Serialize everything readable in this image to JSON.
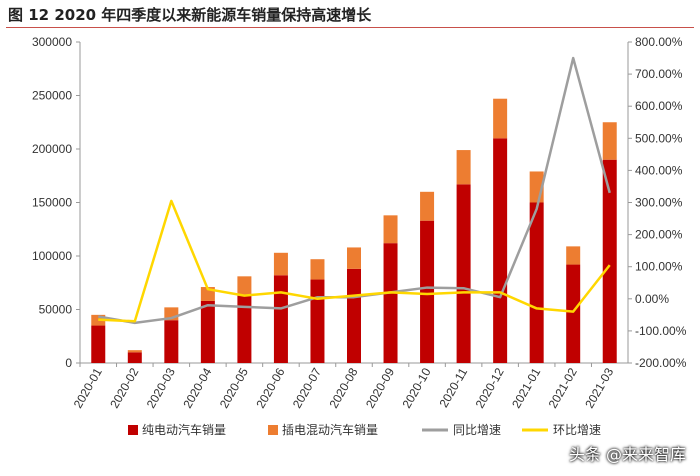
{
  "title": "图  12 2020 年四季度以来新能源车销量保持高速增长",
  "watermark": "头条 @来来智库",
  "chart_data": {
    "type": "bar",
    "categories": [
      "2020-01",
      "2020-02",
      "2020-03",
      "2020-04",
      "2020-05",
      "2020-06",
      "2020-07",
      "2020-08",
      "2020-09",
      "2020-10",
      "2020-11",
      "2020-12",
      "2021-01",
      "2021-02",
      "2021-03"
    ],
    "series": [
      {
        "name": "纯电动汽车销量",
        "kind": "bar",
        "axis": "left",
        "color": "#c00000",
        "values": [
          35000,
          10000,
          40000,
          58000,
          63000,
          82000,
          78000,
          88000,
          112000,
          133000,
          167000,
          210000,
          150000,
          92000,
          190000
        ]
      },
      {
        "name": "插电混动汽车销量",
        "kind": "bar",
        "axis": "left",
        "color": "#ed7d31",
        "values": [
          10000,
          2000,
          12000,
          13000,
          18000,
          21000,
          19000,
          20000,
          26000,
          27000,
          32000,
          37000,
          29000,
          17000,
          35000
        ]
      },
      {
        "name": "同比增速",
        "kind": "line",
        "axis": "right",
        "color": "#9e9e9e",
        "values": [
          -0.55,
          -0.75,
          -0.6,
          -0.2,
          -0.25,
          -0.3,
          0.05,
          0.05,
          0.2,
          0.35,
          0.33,
          0.05,
          2.8,
          7.5,
          3.3
        ]
      },
      {
        "name": "环比增速",
        "kind": "line",
        "axis": "right",
        "color": "#ffd700",
        "values": [
          -0.65,
          -0.7,
          3.05,
          0.3,
          0.1,
          0.2,
          0.0,
          0.1,
          0.2,
          0.15,
          0.2,
          0.2,
          -0.3,
          -0.4,
          1.05
        ]
      }
    ],
    "y_left": {
      "min": 0,
      "max": 300000,
      "ticks": [
        "0",
        "50000",
        "100000",
        "150000",
        "200000",
        "250000",
        "300000"
      ]
    },
    "y_right": {
      "min": -2,
      "max": 8,
      "ticks": [
        "-200.00%",
        "-100.00%",
        "0.00%",
        "100.00%",
        "200.00%",
        "300.00%",
        "400.00%",
        "500.00%",
        "600.00%",
        "700.00%",
        "800.00%"
      ]
    },
    "legend_position": "bottom",
    "grid": false
  }
}
